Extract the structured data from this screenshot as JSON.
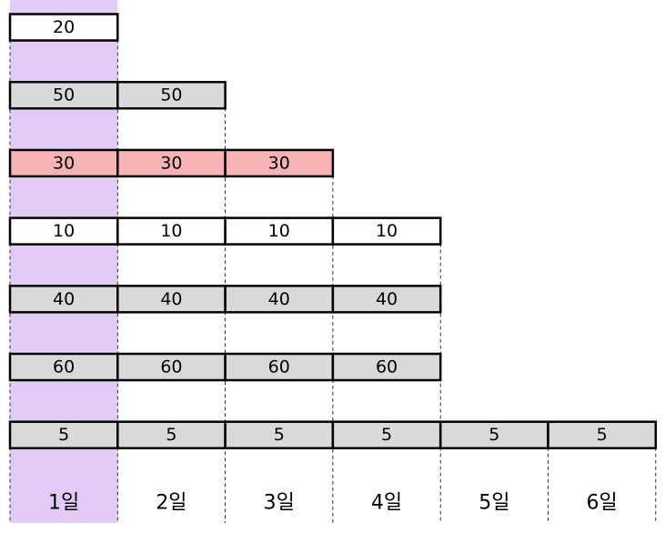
{
  "rows": [
    {
      "cells": [
        "20"
      ],
      "fill": "#ffffff"
    },
    {
      "cells": [
        "50",
        "50"
      ],
      "fill": "#d9d9d9"
    },
    {
      "cells": [
        "30",
        "30",
        "30"
      ],
      "fill": "#f8b4b4"
    },
    {
      "cells": [
        "10",
        "10",
        "10",
        "10"
      ],
      "fill": "#ffffff"
    },
    {
      "cells": [
        "40",
        "40",
        "40",
        "40"
      ],
      "fill": "#d9d9d9"
    },
    {
      "cells": [
        "60",
        "60",
        "60",
        "60"
      ],
      "fill": "#d9d9d9"
    },
    {
      "cells": [
        "5",
        "5",
        "5",
        "5",
        "5",
        "5"
      ],
      "fill": "#d9d9d9"
    }
  ],
  "days": [
    "1일",
    "2일",
    "3일",
    "4일",
    "5일",
    "6일"
  ],
  "highlight_column_color": "#e2ccf7",
  "highlight_label_color": "#ff0000"
}
